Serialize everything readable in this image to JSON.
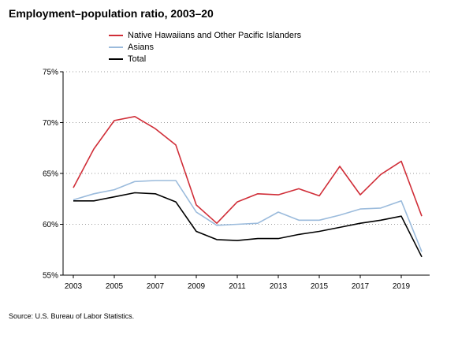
{
  "chart_data": {
    "type": "line",
    "title": "Employment–population ratio, 2003–20",
    "x": [
      2003,
      2004,
      2005,
      2006,
      2007,
      2008,
      2009,
      2010,
      2011,
      2012,
      2013,
      2014,
      2015,
      2016,
      2017,
      2018,
      2019,
      2020
    ],
    "xticks": [
      "2003",
      "2005",
      "2007",
      "2009",
      "2011",
      "2013",
      "2015",
      "2017",
      "2019"
    ],
    "yticks": [
      "55%",
      "60%",
      "65%",
      "70%",
      "75%"
    ],
    "ylim": [
      55,
      75
    ],
    "grid": "horizontal-dotted",
    "legend_position": "top",
    "series": [
      {
        "name": "Native Hawaiians and Other Pacific Islanders",
        "color": "#d02e38",
        "values": [
          63.6,
          67.4,
          70.2,
          70.6,
          69.4,
          67.8,
          61.9,
          60.1,
          62.2,
          63.0,
          62.9,
          63.5,
          62.8,
          65.7,
          62.9,
          64.9,
          66.2,
          60.8
        ]
      },
      {
        "name": "Asians",
        "color": "#9bbbdc",
        "values": [
          62.4,
          63.0,
          63.4,
          64.2,
          64.3,
          64.3,
          61.2,
          59.9,
          60.0,
          60.1,
          61.2,
          60.4,
          60.4,
          60.9,
          61.5,
          61.6,
          62.3,
          57.3
        ]
      },
      {
        "name": "Total",
        "color": "#000000",
        "values": [
          62.3,
          62.3,
          62.7,
          63.1,
          63.0,
          62.2,
          59.3,
          58.5,
          58.4,
          58.6,
          58.6,
          59.0,
          59.3,
          59.7,
          60.1,
          60.4,
          60.8,
          56.8
        ]
      }
    ]
  },
  "source": "Source: U.S. Bureau of Labor Statistics."
}
